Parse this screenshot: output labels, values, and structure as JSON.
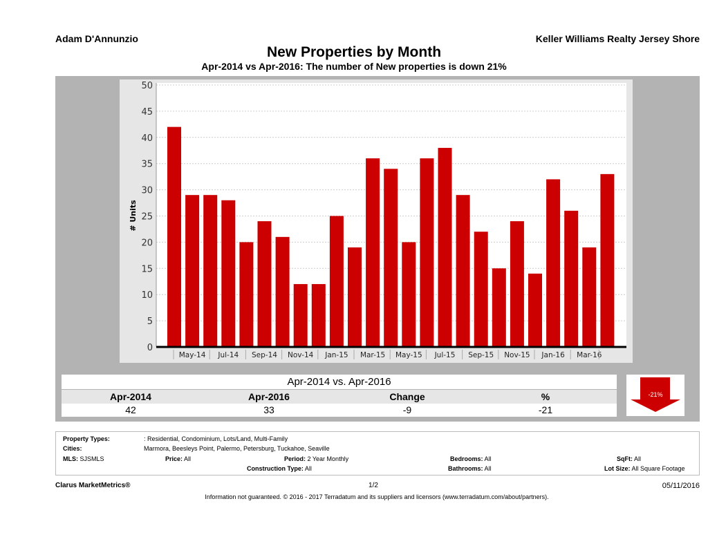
{
  "header": {
    "agent": "Adam D'Annunzio",
    "company": "Keller Williams Realty Jersey Shore"
  },
  "title": "New Properties by Month",
  "subtitle": "Apr-2014 vs Apr-2016: The number of New  properties is down 21%",
  "chart_data": {
    "type": "bar",
    "ylabel": "# Units",
    "ylim": [
      0,
      50
    ],
    "yticks": [
      0,
      5,
      10,
      15,
      20,
      25,
      30,
      35,
      40,
      45,
      50
    ],
    "grid": true,
    "bar_color": "#cc0000",
    "categories": [
      "Apr-14",
      "May-14",
      "Jun-14",
      "Jul-14",
      "Aug-14",
      "Sep-14",
      "Oct-14",
      "Nov-14",
      "Dec-14",
      "Jan-15",
      "Feb-15",
      "Mar-15",
      "Apr-15",
      "May-15",
      "Jun-15",
      "Jul-15",
      "Aug-15",
      "Sep-15",
      "Oct-15",
      "Nov-15",
      "Dec-15",
      "Jan-16",
      "Feb-16",
      "Mar-16",
      "Apr-16"
    ],
    "xtick_labels": [
      "May-14",
      "Jul-14",
      "Sep-14",
      "Nov-14",
      "Jan-15",
      "Mar-15",
      "May-15",
      "Jul-15",
      "Sep-15",
      "Nov-15",
      "Jan-16",
      "Mar-16"
    ],
    "values": [
      42,
      29,
      29,
      28,
      20,
      24,
      21,
      12,
      12,
      25,
      19,
      36,
      34,
      20,
      36,
      38,
      29,
      22,
      15,
      24,
      14,
      32,
      26,
      19,
      33
    ]
  },
  "summary": {
    "heading": "Apr-2014 vs. Apr-2016",
    "columns": [
      "Apr-2014",
      "Apr-2016",
      "Change",
      "%"
    ],
    "values": [
      "42",
      "33",
      "-9",
      "-21"
    ],
    "arrow_label": "-21%",
    "arrow_direction": "down"
  },
  "filters": {
    "property_types_label": "Property Types:",
    "property_types": ": Residential, Condominium, Lots/Land, Multi-Family",
    "cities_label": "Cities:",
    "cities": "Marmora, Beesleys Point, Palermo, Petersburg, Tuckahoe, Seaville",
    "mls_label": "MLS:",
    "mls": "SJSMLS",
    "price_label": "Price:",
    "price": "All",
    "period_label": "Period:",
    "period": "2 Year Monthly",
    "bedrooms_label": "Bedrooms:",
    "bedrooms": "All",
    "sqft_label": "SqFt:",
    "sqft": "All",
    "construction_label": "Construction Type:",
    "construction": "All",
    "bathrooms_label": "Bathrooms:",
    "bathrooms": "All",
    "lotsize_label": "Lot Size:",
    "lotsize": "All Square Footage"
  },
  "footer": {
    "brand": "Clarus MarketMetrics®",
    "page": "1/2",
    "date": "05/11/2016",
    "disclaimer": "Information not guaranteed. © 2016 - 2017 Terradatum and its suppliers and licensors (www.terradatum.com/about/partners)."
  }
}
